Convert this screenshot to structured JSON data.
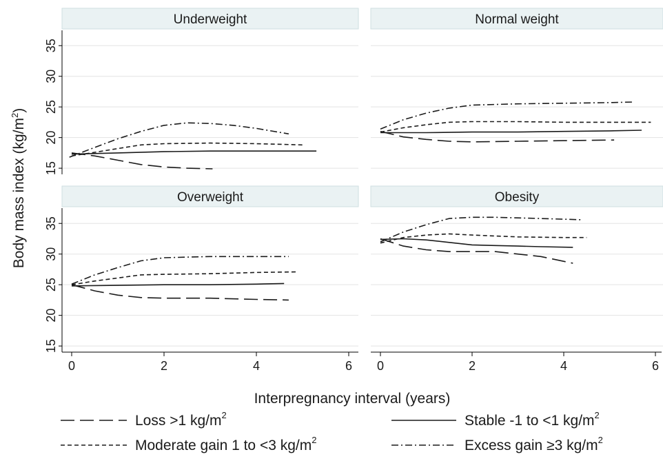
{
  "chart_data": {
    "type": "line",
    "xlabel": "Interpregnancy interval (years)",
    "ylabel": "Body mass index (kg/m",
    "ylabel_sup": "2",
    "ylabel_close": ")",
    "xlim": [
      0,
      6
    ],
    "ylim": [
      14,
      37.5
    ],
    "xticks": [
      "0",
      "2",
      "4",
      "6"
    ],
    "yticks": [
      "15",
      "20",
      "25",
      "30",
      "35"
    ],
    "grid": "horizontal",
    "legend_position": "bottom",
    "legend": [
      {
        "key": "loss",
        "label": "Loss >1 kg/m",
        "sup": "2",
        "style": "long-dash"
      },
      {
        "key": "stable",
        "label": "Stable -1 to <1 kg/m",
        "sup": "2",
        "style": "solid"
      },
      {
        "key": "moderate",
        "label": "Moderate gain 1 to <3 kg/m",
        "sup": "2",
        "style": "short-dash"
      },
      {
        "key": "excess",
        "label": "Excess gain ≥3 kg/m",
        "sup": "2",
        "style": "dash-dot"
      }
    ],
    "panels": [
      {
        "title": "Underweight",
        "series": [
          {
            "key": "loss",
            "x": [
              0,
              0.5,
              1,
              1.5,
              2,
              2.5,
              3.05
            ],
            "y": [
              17.5,
              17.0,
              16.3,
              15.6,
              15.2,
              15.0,
              14.9
            ]
          },
          {
            "key": "stable",
            "x": [
              0,
              1,
              2,
              3,
              4,
              5,
              5.3
            ],
            "y": [
              17.3,
              17.5,
              17.7,
              17.8,
              17.8,
              17.8,
              17.8
            ]
          },
          {
            "key": "moderate",
            "x": [
              0,
              0.5,
              1,
              1.5,
              2,
              3,
              4,
              5
            ],
            "y": [
              17.0,
              17.6,
              18.2,
              18.8,
              19.0,
              19.1,
              19.0,
              18.8
            ]
          },
          {
            "key": "excess",
            "x": [
              -0.05,
              0.5,
              1,
              1.5,
              2,
              2.5,
              3,
              3.5,
              4,
              4.7
            ],
            "y": [
              16.8,
              18.4,
              19.8,
              21.0,
              22.0,
              22.4,
              22.3,
              22.0,
              21.5,
              20.6
            ]
          }
        ]
      },
      {
        "title": "Normal weight",
        "series": [
          {
            "key": "loss",
            "x": [
              0,
              0.5,
              1,
              1.5,
              2,
              3,
              4,
              5.1
            ],
            "y": [
              21.0,
              20.1,
              19.7,
              19.4,
              19.3,
              19.4,
              19.5,
              19.6
            ]
          },
          {
            "key": "stable",
            "x": [
              0,
              1,
              2,
              3,
              4,
              5,
              5.7
            ],
            "y": [
              20.8,
              20.8,
              20.9,
              20.9,
              21.0,
              21.1,
              21.2
            ]
          },
          {
            "key": "moderate",
            "x": [
              0,
              0.5,
              1,
              1.5,
              2,
              3,
              4,
              5,
              5.9
            ],
            "y": [
              20.9,
              21.6,
              22.1,
              22.5,
              22.6,
              22.6,
              22.5,
              22.5,
              22.5
            ]
          },
          {
            "key": "excess",
            "x": [
              0,
              0.5,
              1,
              1.5,
              2,
              3,
              4,
              5,
              5.5
            ],
            "y": [
              21.4,
              22.9,
              24.0,
              24.8,
              25.3,
              25.5,
              25.6,
              25.7,
              25.8
            ]
          }
        ]
      },
      {
        "title": "Overweight",
        "series": [
          {
            "key": "loss",
            "x": [
              0,
              0.5,
              1,
              1.5,
              2,
              3,
              4,
              4.7
            ],
            "y": [
              25.0,
              24.0,
              23.3,
              22.9,
              22.8,
              22.8,
              22.6,
              22.5
            ]
          },
          {
            "key": "stable",
            "x": [
              0,
              1,
              2,
              3,
              4,
              4.6
            ],
            "y": [
              24.8,
              24.9,
              25.0,
              25.0,
              25.1,
              25.2
            ]
          },
          {
            "key": "moderate",
            "x": [
              0,
              0.5,
              1,
              1.5,
              2,
              3,
              4,
              4.9
            ],
            "y": [
              25.0,
              25.6,
              26.1,
              26.6,
              26.7,
              26.8,
              27.0,
              27.1
            ]
          },
          {
            "key": "excess",
            "x": [
              0,
              0.5,
              1,
              1.5,
              2,
              3,
              4,
              4.7
            ],
            "y": [
              25.1,
              26.6,
              27.8,
              28.9,
              29.4,
              29.6,
              29.6,
              29.6
            ]
          }
        ]
      },
      {
        "title": "Obesity",
        "series": [
          {
            "key": "loss",
            "x": [
              0,
              0.5,
              1,
              1.5,
              2,
              2.5,
              3,
              3.5,
              4.2
            ],
            "y": [
              32.5,
              31.3,
              30.7,
              30.4,
              30.4,
              30.4,
              30.0,
              29.6,
              28.5
            ]
          },
          {
            "key": "stable",
            "x": [
              0,
              0.5,
              1,
              1.5,
              2,
              2.5,
              3,
              3.5,
              4.2
            ],
            "y": [
              32.4,
              32.5,
              32.3,
              31.9,
              31.5,
              31.4,
              31.3,
              31.2,
              31.1
            ]
          },
          {
            "key": "moderate",
            "x": [
              0,
              0.5,
              1,
              1.5,
              2,
              3,
              4,
              4.5
            ],
            "y": [
              31.8,
              32.7,
              33.1,
              33.3,
              33.1,
              32.8,
              32.7,
              32.7
            ]
          },
          {
            "key": "excess",
            "x": [
              0,
              0.5,
              1,
              1.5,
              2,
              2.5,
              3,
              3.5,
              4.4
            ],
            "y": [
              32.0,
              33.6,
              34.8,
              35.8,
              36.0,
              36.0,
              35.9,
              35.8,
              35.6
            ]
          }
        ]
      }
    ]
  }
}
